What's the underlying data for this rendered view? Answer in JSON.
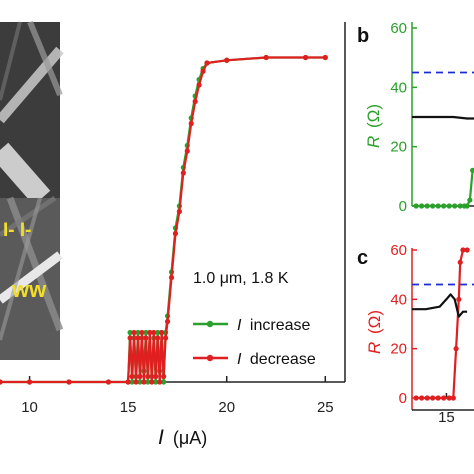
{
  "figure": {
    "panel_b_label": "b",
    "panel_c_label": "c",
    "inset_label_top": "I- I-",
    "inset_label_bottom": "ww"
  },
  "colors": {
    "increase": "#2ca02c",
    "decrease": "#e02020",
    "reference": "#1a2bd6",
    "black_trace": "#111111"
  },
  "chart_data": [
    {
      "panel": "a",
      "type": "line",
      "xlabel": "I (μA)",
      "xlabel_symbol": "I",
      "xlabel_unit": "(μA)",
      "ylabel": "",
      "xlim": [
        8.5,
        26
      ],
      "ylim": [
        0,
        60
      ],
      "xticks": [
        10,
        15,
        20,
        25
      ],
      "annotation": "1.0 μm, 1.8 K",
      "legend_position": "lower-right",
      "series": [
        {
          "name": "I increase",
          "legend_symbol": "I",
          "legend_text": "increase",
          "color": "#2ca02c",
          "x": [
            8.5,
            10,
            12,
            14,
            15,
            15.1,
            15.2,
            15.3,
            15.4,
            15.5,
            15.6,
            15.7,
            15.8,
            15.9,
            16.0,
            16.1,
            16.2,
            16.3,
            16.4,
            16.5,
            16.6,
            16.7,
            16.8,
            16.9,
            17.0,
            17.2,
            17.4,
            17.6,
            17.8,
            18.0,
            18.2,
            18.4,
            18.6,
            18.8,
            19.0,
            20,
            22,
            24,
            25
          ],
          "y": [
            0,
            0,
            0,
            0,
            0,
            9,
            0,
            8,
            1,
            9,
            0,
            8,
            2,
            9,
            0,
            9,
            1,
            8,
            0,
            9,
            2,
            9,
            0,
            9,
            12,
            20,
            28,
            32,
            39,
            43,
            48,
            52,
            55,
            57,
            58,
            58.5,
            59,
            59,
            59
          ]
        },
        {
          "name": "I decrease",
          "legend_symbol": "I",
          "legend_text": "decrease",
          "color": "#e02020",
          "x": [
            8.5,
            10,
            12,
            14,
            15,
            15.1,
            15.2,
            15.3,
            15.4,
            15.5,
            15.6,
            15.7,
            15.8,
            15.9,
            16.0,
            16.1,
            16.2,
            16.3,
            16.4,
            16.5,
            16.6,
            16.7,
            16.8,
            16.9,
            17.0,
            17.2,
            17.4,
            17.6,
            17.8,
            18.0,
            18.2,
            18.4,
            18.6,
            18.8,
            19.0,
            20,
            22,
            24,
            25
          ],
          "y": [
            0,
            0,
            0,
            0,
            0,
            8,
            1,
            9,
            0,
            8,
            1,
            9,
            0,
            8,
            1,
            9,
            0,
            9,
            1,
            8,
            0,
            9,
            1,
            8,
            11,
            19,
            27,
            31,
            38,
            42,
            47,
            51,
            54,
            56.5,
            58,
            58.5,
            59,
            59,
            59
          ]
        }
      ]
    },
    {
      "panel": "b",
      "type": "line",
      "ylabel": "R (Ω)",
      "ylabel_symbol": "R",
      "ylabel_unit": "(Ω)",
      "xlim": [
        12.5,
        17
      ],
      "ylim": [
        0,
        60
      ],
      "yticks": [
        0,
        20,
        40,
        60
      ],
      "reference_line": 45,
      "series": [
        {
          "color": "#2ca02c",
          "x": [
            12.8,
            13.2,
            13.6,
            14.0,
            14.4,
            14.8,
            15.2,
            15.6,
            16.0,
            16.3,
            16.5,
            16.7,
            16.9
          ],
          "y": [
            0,
            0,
            0,
            0,
            0,
            0,
            0,
            0,
            0,
            0,
            0,
            2,
            12
          ]
        },
        {
          "color": "#111111",
          "x": [
            12.5,
            14,
            15.5,
            16.5,
            17
          ],
          "y": [
            30,
            30,
            30,
            29.5,
            29.5
          ]
        }
      ]
    },
    {
      "panel": "c",
      "type": "line",
      "ylabel": "R (Ω)",
      "ylabel_symbol": "R",
      "ylabel_unit": "(Ω)",
      "xlim": [
        12.5,
        17
      ],
      "ylim": [
        0,
        60
      ],
      "yticks": [
        0,
        20,
        40,
        60
      ],
      "xticks": [
        15
      ],
      "reference_line": 46,
      "series": [
        {
          "color": "#e02020",
          "x": [
            12.8,
            13.2,
            13.6,
            14.0,
            14.4,
            14.8,
            15.2,
            15.5,
            15.7,
            15.9,
            16.0,
            16.2,
            16.5
          ],
          "y": [
            0,
            0,
            0,
            0,
            0,
            0,
            0,
            0,
            20,
            40,
            55,
            60,
            60
          ]
        },
        {
          "color": "#111111",
          "x": [
            12.5,
            13.5,
            14.5,
            15.0,
            15.3,
            15.6,
            15.9,
            16.2,
            16.5
          ],
          "y": [
            36,
            36,
            37,
            40,
            42,
            40,
            33,
            35,
            35
          ]
        }
      ]
    }
  ]
}
